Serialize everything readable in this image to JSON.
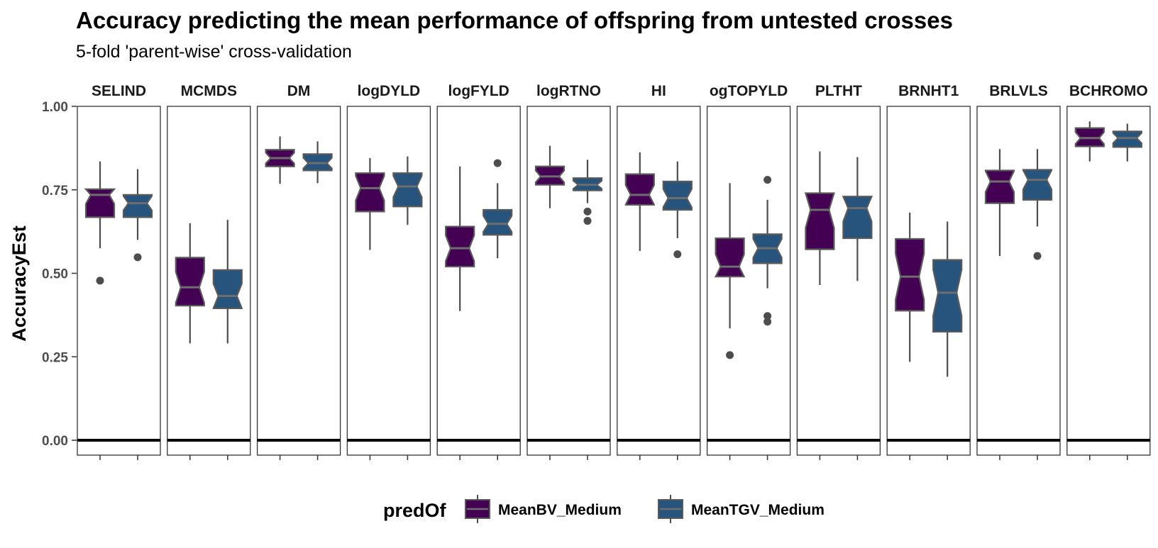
{
  "chart_data": {
    "type": "boxplot",
    "notched": true,
    "title": "Accuracy predicting the mean performance of offspring from untested crosses",
    "subtitle": "5-fold 'parent-wise' cross-validation",
    "ylabel": "AccuracyEst",
    "xlabel": "",
    "ylim": [
      -0.045,
      1.0
    ],
    "yticks": [
      0.0,
      0.25,
      0.5,
      0.75,
      1.0
    ],
    "ytick_labels": [
      "0.00",
      "0.25",
      "0.50",
      "0.75",
      "1.00"
    ],
    "reference_line": 0.0,
    "legend": {
      "title": "predOf",
      "position": "bottom",
      "entries": [
        "MeanBV_Medium",
        "MeanTGV_Medium"
      ]
    },
    "colors": {
      "MeanBV_Medium": "#440154",
      "MeanTGV_Medium": "#26547c",
      "box_outline": "#5a5a5a",
      "median_line": "#6e6e6e",
      "whisker": "#4d4d4d",
      "outlier": "#4d4d4d"
    },
    "facets": [
      {
        "label": "SELIND",
        "series": [
          {
            "name": "MeanBV_Medium",
            "min": 0.575,
            "q1": 0.668,
            "median": 0.735,
            "q3": 0.752,
            "max": 0.835,
            "outliers": [
              0.478
            ]
          },
          {
            "name": "MeanTGV_Medium",
            "min": 0.6,
            "q1": 0.668,
            "median": 0.71,
            "q3": 0.735,
            "max": 0.812,
            "outliers": [
              0.548
            ]
          }
        ]
      },
      {
        "label": "MCMDS",
        "series": [
          {
            "name": "MeanBV_Medium",
            "min": 0.29,
            "q1": 0.403,
            "median": 0.458,
            "q3": 0.547,
            "max": 0.65,
            "outliers": []
          },
          {
            "name": "MeanTGV_Medium",
            "min": 0.29,
            "q1": 0.395,
            "median": 0.432,
            "q3": 0.51,
            "max": 0.66,
            "outliers": []
          }
        ]
      },
      {
        "label": "DM",
        "series": [
          {
            "name": "MeanBV_Medium",
            "min": 0.768,
            "q1": 0.82,
            "median": 0.845,
            "q3": 0.87,
            "max": 0.91,
            "outliers": []
          },
          {
            "name": "MeanTGV_Medium",
            "min": 0.77,
            "q1": 0.808,
            "median": 0.83,
            "q3": 0.857,
            "max": 0.895,
            "outliers": []
          }
        ]
      },
      {
        "label": "logDYLD",
        "series": [
          {
            "name": "MeanBV_Medium",
            "min": 0.57,
            "q1": 0.685,
            "median": 0.755,
            "q3": 0.8,
            "max": 0.845,
            "outliers": []
          },
          {
            "name": "MeanTGV_Medium",
            "min": 0.645,
            "q1": 0.7,
            "median": 0.76,
            "q3": 0.8,
            "max": 0.85,
            "outliers": []
          }
        ]
      },
      {
        "label": "logFYLD",
        "series": [
          {
            "name": "MeanBV_Medium",
            "min": 0.387,
            "q1": 0.52,
            "median": 0.575,
            "q3": 0.64,
            "max": 0.82,
            "outliers": []
          },
          {
            "name": "MeanTGV_Medium",
            "min": 0.545,
            "q1": 0.615,
            "median": 0.648,
            "q3": 0.69,
            "max": 0.77,
            "outliers": [
              0.83
            ]
          }
        ]
      },
      {
        "label": "logRTNO",
        "series": [
          {
            "name": "MeanBV_Medium",
            "min": 0.695,
            "q1": 0.765,
            "median": 0.79,
            "q3": 0.82,
            "max": 0.882,
            "outliers": []
          },
          {
            "name": "MeanTGV_Medium",
            "min": 0.71,
            "q1": 0.748,
            "median": 0.765,
            "q3": 0.785,
            "max": 0.84,
            "outliers": [
              0.685,
              0.657
            ]
          }
        ]
      },
      {
        "label": "HI",
        "series": [
          {
            "name": "MeanBV_Medium",
            "min": 0.567,
            "q1": 0.705,
            "median": 0.735,
            "q3": 0.797,
            "max": 0.862,
            "outliers": []
          },
          {
            "name": "MeanTGV_Medium",
            "min": 0.605,
            "q1": 0.69,
            "median": 0.725,
            "q3": 0.775,
            "max": 0.835,
            "outliers": [
              0.557
            ]
          }
        ]
      },
      {
        "label": "ogTOPYLD",
        "series": [
          {
            "name": "MeanBV_Medium",
            "min": 0.335,
            "q1": 0.49,
            "median": 0.52,
            "q3": 0.605,
            "max": 0.77,
            "outliers": [
              0.255
            ]
          },
          {
            "name": "MeanTGV_Medium",
            "min": 0.455,
            "q1": 0.53,
            "median": 0.575,
            "q3": 0.617,
            "max": 0.72,
            "outliers": [
              0.78,
              0.372,
              0.355
            ]
          }
        ]
      },
      {
        "label": "PLTHT",
        "series": [
          {
            "name": "MeanBV_Medium",
            "min": 0.465,
            "q1": 0.572,
            "median": 0.69,
            "q3": 0.74,
            "max": 0.865,
            "outliers": []
          },
          {
            "name": "MeanTGV_Medium",
            "min": 0.477,
            "q1": 0.605,
            "median": 0.695,
            "q3": 0.73,
            "max": 0.848,
            "outliers": []
          }
        ]
      },
      {
        "label": "BRNHT1",
        "series": [
          {
            "name": "MeanBV_Medium",
            "min": 0.235,
            "q1": 0.388,
            "median": 0.49,
            "q3": 0.603,
            "max": 0.682,
            "outliers": []
          },
          {
            "name": "MeanTGV_Medium",
            "min": 0.19,
            "q1": 0.325,
            "median": 0.442,
            "q3": 0.54,
            "max": 0.655,
            "outliers": []
          }
        ]
      },
      {
        "label": "BRLVLS",
        "series": [
          {
            "name": "MeanBV_Medium",
            "min": 0.552,
            "q1": 0.71,
            "median": 0.775,
            "q3": 0.808,
            "max": 0.872,
            "outliers": []
          },
          {
            "name": "MeanTGV_Medium",
            "min": 0.64,
            "q1": 0.72,
            "median": 0.78,
            "q3": 0.81,
            "max": 0.872,
            "outliers": [
              0.552
            ]
          }
        ]
      },
      {
        "label": "BCHROMO",
        "series": [
          {
            "name": "MeanBV_Medium",
            "min": 0.835,
            "q1": 0.88,
            "median": 0.905,
            "q3": 0.935,
            "max": 0.955,
            "outliers": []
          },
          {
            "name": "MeanTGV_Medium",
            "min": 0.835,
            "q1": 0.878,
            "median": 0.905,
            "q3": 0.925,
            "max": 0.948,
            "outliers": []
          }
        ]
      }
    ]
  }
}
